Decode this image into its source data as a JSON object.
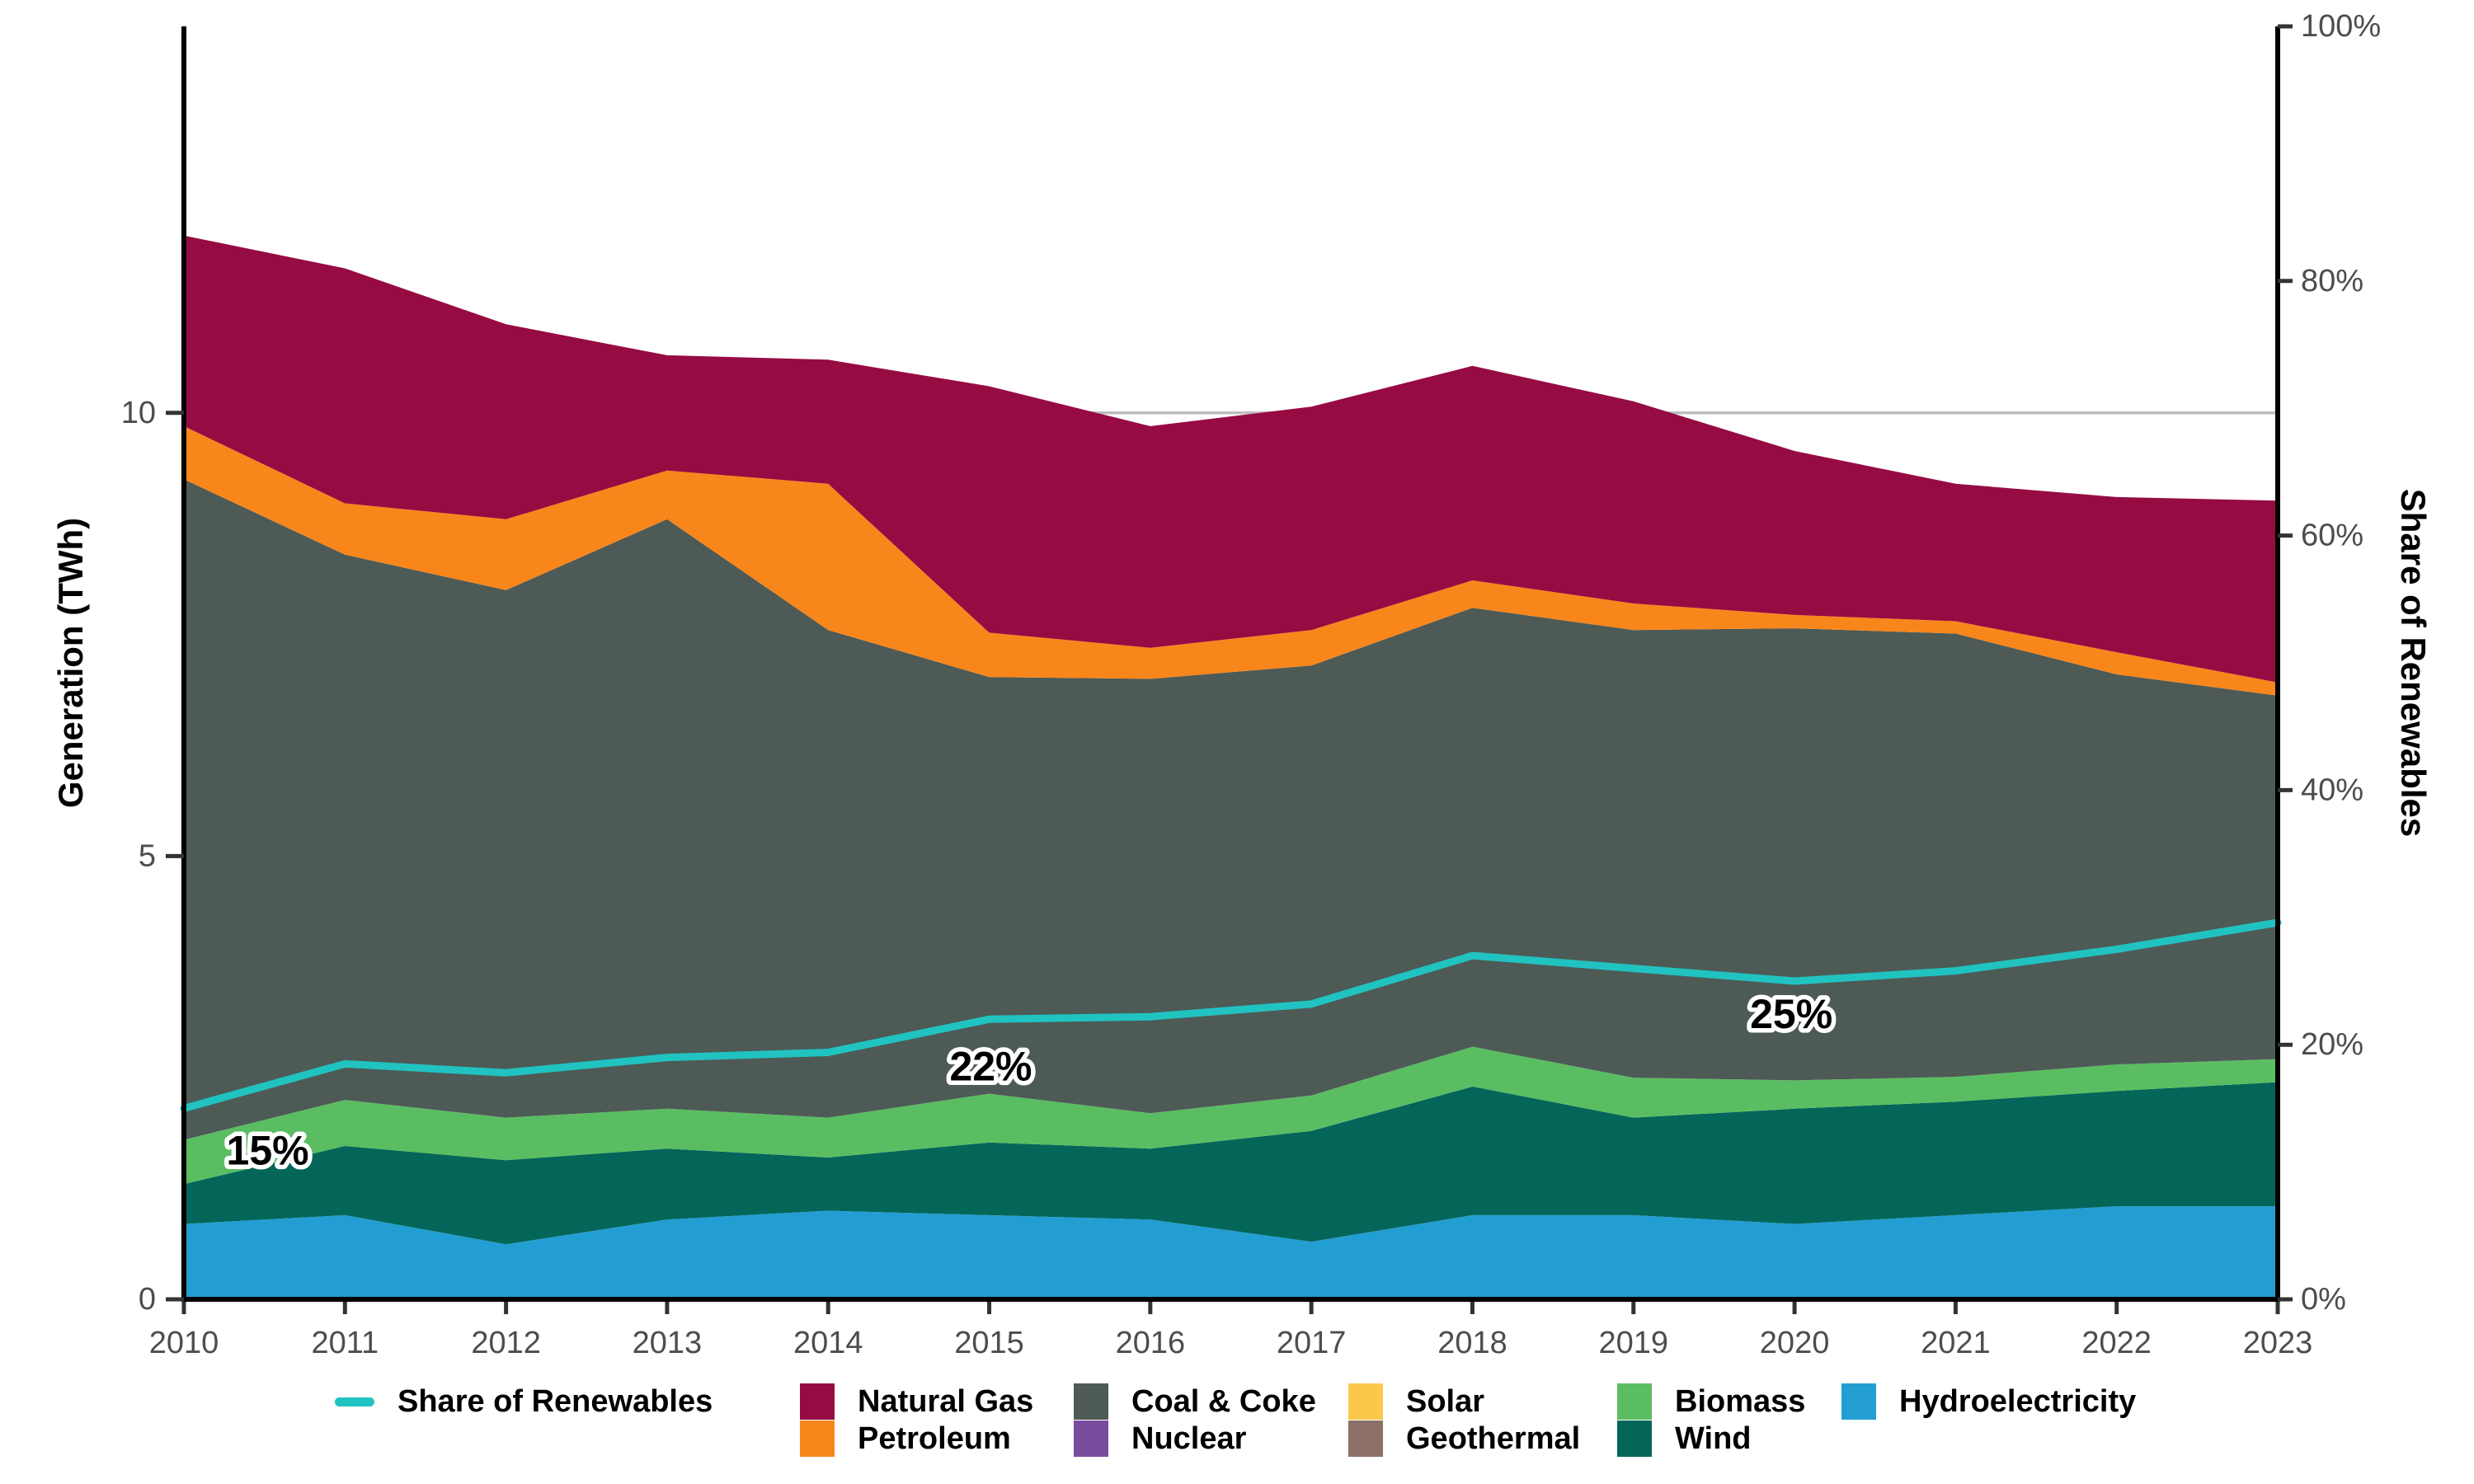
{
  "figure": {
    "background": "#ffffff",
    "accent_colors": {
      "axis_line": "#000000",
      "tick_mark": "#333333",
      "tick_label": "#4d4d4d",
      "reference_line": "#bdbdbd",
      "annotation_text": "#000000",
      "annotation_halo": "#ffffff"
    }
  },
  "chart_data": {
    "type": "area",
    "subtype": "stacked-area-with-secondary-line",
    "title": "",
    "x": [
      2010,
      2011,
      2012,
      2013,
      2014,
      2015,
      2016,
      2017,
      2018,
      2019,
      2020,
      2021,
      2022,
      2023
    ],
    "stack_order": [
      "hydroelectricity",
      "wind",
      "biomass",
      "geothermal",
      "solar",
      "nuclear",
      "coal_coke",
      "petroleum",
      "natural_gas"
    ],
    "series": [
      {
        "id": "hydroelectricity",
        "name": "Hydroelectricity",
        "color": "#239ED3",
        "values": [
          0.85,
          0.95,
          0.62,
          0.9,
          1.0,
          0.95,
          0.9,
          0.65,
          0.95,
          0.95,
          0.85,
          0.95,
          1.05,
          1.05
        ]
      },
      {
        "id": "wind",
        "name": "Wind",
        "color": "#046659",
        "values": [
          0.45,
          0.78,
          0.95,
          0.8,
          0.6,
          0.82,
          0.8,
          1.25,
          1.45,
          1.1,
          1.3,
          1.28,
          1.3,
          1.4
        ]
      },
      {
        "id": "biomass",
        "name": "Biomass",
        "color": "#5BBD62",
        "values": [
          0.5,
          0.52,
          0.48,
          0.45,
          0.45,
          0.55,
          0.4,
          0.4,
          0.45,
          0.45,
          0.32,
          0.28,
          0.3,
          0.26
        ]
      },
      {
        "id": "geothermal",
        "name": "Geothermal",
        "color": "#8D7168",
        "values": [
          0,
          0,
          0,
          0,
          0,
          0,
          0,
          0,
          0,
          0,
          0,
          0,
          0,
          0
        ]
      },
      {
        "id": "solar",
        "name": "Solar",
        "color": "#FBC84B",
        "values": [
          0,
          0,
          0,
          0,
          0,
          0,
          0,
          0,
          0,
          0,
          0,
          0,
          0,
          0
        ]
      },
      {
        "id": "nuclear",
        "name": "Nuclear",
        "color": "#7A4C9E",
        "values": [
          0,
          0,
          0,
          0,
          0,
          0,
          0,
          0,
          0,
          0,
          0,
          0,
          0,
          0
        ]
      },
      {
        "id": "coal_coke",
        "name": "Coal & Coke",
        "color": "#4D5A56",
        "values": [
          7.45,
          6.15,
          5.95,
          6.65,
          5.5,
          4.7,
          4.9,
          4.85,
          4.95,
          5.05,
          5.1,
          5.0,
          4.4,
          4.1
        ]
      },
      {
        "id": "petroleum",
        "name": "Petroleum",
        "color": "#F8861B",
        "values": [
          0.6,
          0.58,
          0.8,
          0.55,
          1.65,
          0.5,
          0.35,
          0.4,
          0.31,
          0.3,
          0.15,
          0.14,
          0.25,
          0.15
        ]
      },
      {
        "id": "natural_gas",
        "name": "Natural Gas",
        "color": "#970B43",
        "values": [
          2.15,
          2.65,
          2.2,
          1.3,
          1.4,
          2.78,
          2.5,
          2.52,
          2.42,
          2.28,
          1.85,
          1.55,
          1.75,
          2.05
        ]
      }
    ],
    "line_series": {
      "id": "share_renewables",
      "name": "Share of Renewables",
      "color": "#21C3C1",
      "axis": "right",
      "values_pct": [
        15.0,
        18.5,
        17.8,
        19.0,
        19.4,
        22.0,
        22.2,
        23.2,
        27.0,
        26.0,
        25.0,
        25.8,
        27.5,
        29.6
      ]
    },
    "annotations": [
      {
        "label": "15%",
        "x_year": 2010.52,
        "y_pct": 11.7
      },
      {
        "label": "22%",
        "x_year": 2015.01,
        "y_pct": 18.3
      },
      {
        "label": "25%",
        "x_year": 2019.98,
        "y_pct": 22.4
      }
    ],
    "reference_line": {
      "value_twh": 10,
      "color": "#bdbdbd"
    },
    "axes": {
      "left": {
        "title": "Generation (TWh)",
        "max": 14.36,
        "ticks": [
          {
            "value": 0,
            "label": "0"
          },
          {
            "value": 5,
            "label": "5"
          },
          {
            "value": 10,
            "label": "10"
          }
        ]
      },
      "right": {
        "title": "Share of Renewables",
        "max": 100,
        "ticks": [
          {
            "value": 0,
            "label": "0%"
          },
          {
            "value": 20,
            "label": "20%"
          },
          {
            "value": 40,
            "label": "40%"
          },
          {
            "value": 60,
            "label": "60%"
          },
          {
            "value": 80,
            "label": "80%"
          },
          {
            "value": 100,
            "label": "100%"
          }
        ]
      },
      "bottom": {
        "ticks": [
          {
            "value": 2010,
            "label": "2010"
          },
          {
            "value": 2011,
            "label": "2011"
          },
          {
            "value": 2012,
            "label": "2012"
          },
          {
            "value": 2013,
            "label": "2013"
          },
          {
            "value": 2014,
            "label": "2014"
          },
          {
            "value": 2015,
            "label": "2015"
          },
          {
            "value": 2016,
            "label": "2016"
          },
          {
            "value": 2017,
            "label": "2017"
          },
          {
            "value": 2018,
            "label": "2018"
          },
          {
            "value": 2019,
            "label": "2019"
          },
          {
            "value": 2020,
            "label": "2020"
          },
          {
            "value": 2021,
            "label": "2021"
          },
          {
            "value": 2022,
            "label": "2022"
          },
          {
            "value": 2023,
            "label": "2023"
          }
        ]
      }
    }
  },
  "legend": {
    "items": [
      {
        "label": "Share of Renewables",
        "color": "#21C3C1",
        "swatch": "line"
      },
      {
        "label": "Natural Gas",
        "color": "#970B43",
        "swatch": "rect"
      },
      {
        "label": "Petroleum",
        "color": "#F8861B",
        "swatch": "rect"
      },
      {
        "label": "Coal & Coke",
        "color": "#4D5A56",
        "swatch": "rect"
      },
      {
        "label": "Nuclear",
        "color": "#7A4C9E",
        "swatch": "rect"
      },
      {
        "label": "Solar",
        "color": "#FBC84B",
        "swatch": "rect"
      },
      {
        "label": "Geothermal",
        "color": "#8D7168",
        "swatch": "rect"
      },
      {
        "label": "Biomass",
        "color": "#5BBD62",
        "swatch": "rect"
      },
      {
        "label": "Wind",
        "color": "#046659",
        "swatch": "rect"
      },
      {
        "label": "Hydroelectricity",
        "color": "#239ED3",
        "swatch": "rect"
      }
    ]
  }
}
